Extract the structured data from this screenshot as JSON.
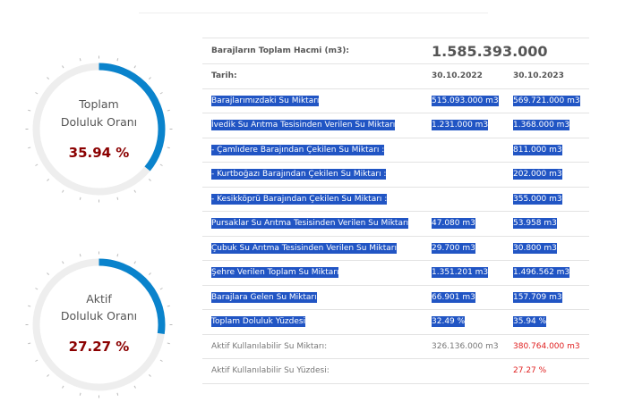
{
  "gauges": [
    {
      "label_line1": "Toplam",
      "label_line2": "Doluluk Oranı",
      "value": "35.94 %",
      "fraction": 0.3594,
      "color": "#0a83cc"
    },
    {
      "label_line1": "Aktif",
      "label_line2": "Doluluk Oranı",
      "value": "27.27 %",
      "fraction": 0.2727,
      "color": "#0a83cc"
    }
  ],
  "table": {
    "total_volume_label": "Barajların Toplam Hacmi (m3):",
    "total_volume_value": "1.585.393.000",
    "date_label": "Tarih:",
    "date_1": "30.10.2022",
    "date_2": "30.10.2023",
    "rows": [
      {
        "label": "Barajlarımızdaki Su Miktarı",
        "v1": "515.093.000 m3",
        "v2": "569.721.000 m3"
      },
      {
        "label": "İvedik Su Arıtma Tesisinden Verilen Su Miktarı",
        "v1": "1.231.000 m3",
        "v2": "1.368.000 m3"
      },
      {
        "label": "- Çamlıdere Barajından Çekilen Su Miktarı :",
        "v1": "",
        "v2": "811.000 m3"
      },
      {
        "label": "- Kurtboğazı Barajından Çekilen Su Miktarı :",
        "v1": "",
        "v2": "202.000 m3"
      },
      {
        "label": "- Kesikköprü Barajından Çekilen Su Miktarı :",
        "v1": "",
        "v2": "355.000 m3"
      },
      {
        "label": "Pursaklar Su Arıtma Tesisinden Verilen Su Miktarı",
        "v1": "47.080 m3",
        "v2": "53.958 m3"
      },
      {
        "label": "Çubuk Su Arıtma Tesisinden Verilen Su Miktarı",
        "v1": "29.700 m3",
        "v2": "30.800 m3"
      },
      {
        "label": "Şehre Verilen Toplam Su Miktarı",
        "v1": "1.351.201 m3",
        "v2": "1.496.562 m3"
      },
      {
        "label": "Barajlara Gelen Su Miktarı",
        "v1": "66.901 m3",
        "v2": "157.709 m3"
      },
      {
        "label": "Toplam Doluluk Yüzdesi",
        "v1": "32.49 %",
        "v2": "35.94 %"
      }
    ],
    "active_amount_label": "Aktif Kullanılabilir Su Miktarı:",
    "active_amount_v1": "326.136.000 m3",
    "active_amount_v2": "380.764.000 m3",
    "active_pct_label": "Aktif Kullanılabilir Su Yüzdesi:",
    "active_pct_v2": "27.27 %"
  }
}
